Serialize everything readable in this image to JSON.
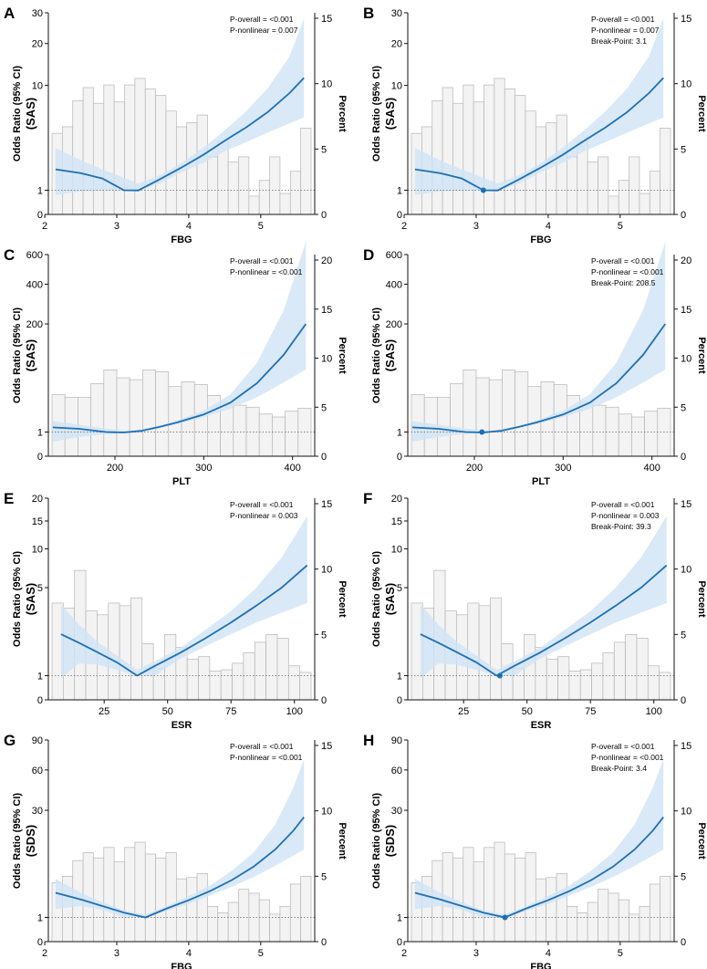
{
  "colors": {
    "curve": "#1f6fb2",
    "band": "#cfe3f5",
    "bar_fill": "#f3f3f3",
    "bar_stroke": "#b5b5b5",
    "axis": "#111111",
    "ref_line": "#666666"
  },
  "chart_data": [
    {
      "type": "bar+line",
      "panel": "A",
      "x_var": "FBG",
      "xlabel": "FBG",
      "ylabel_main": "Odds Ratio (95% CI)",
      "ylabel_sub": "(SAS)",
      "y2label": "Percent",
      "xlim": [
        2.05,
        5.75
      ],
      "xticks": [
        2,
        3,
        4,
        5
      ],
      "yticks": [
        0,
        1,
        10,
        20,
        30
      ],
      "y2ticks": [
        0,
        5,
        10,
        15
      ],
      "stats": [
        "P-overall = <0.001",
        "P-nonlinear = 0.007"
      ],
      "histogram": [
        6.2,
        6.7,
        8.7,
        9.7,
        8.5,
        9.9,
        8.6,
        9.9,
        10.4,
        9.6,
        9.1,
        7.9,
        6.7,
        7.0,
        7.6,
        4.4,
        5.6,
        4.0,
        4.4,
        1.4,
        2.6,
        4.4,
        1.6,
        3.3,
        6.6
      ],
      "curve": {
        "x": [
          2.15,
          2.5,
          2.8,
          3.1,
          3.3,
          3.6,
          3.9,
          4.2,
          4.5,
          4.8,
          5.1,
          5.4,
          5.6
        ],
        "or": [
          1.25,
          1.16,
          1.07,
          1.0,
          0.99,
          1.06,
          1.3,
          1.8,
          2.7,
          3.9,
          5.7,
          8.6,
          11.5
        ]
      },
      "ci_low": [
        0.8,
        0.95,
        0.97,
        0.98,
        0.99,
        1.02,
        1.18,
        1.45,
        2.0,
        2.6,
        3.4,
        4.3,
        5.0
      ],
      "ci_high": [
        2.2,
        1.55,
        1.25,
        1.08,
        1.02,
        1.12,
        1.45,
        2.2,
        3.6,
        5.8,
        9.5,
        16.5,
        28
      ],
      "break_point": null
    },
    {
      "type": "bar+line",
      "panel": "B",
      "x_var": "FBG",
      "xlabel": "FBG",
      "ylabel_main": "Odds Ratio (95% CI)",
      "ylabel_sub": "(SAS)",
      "y2label": "Percent",
      "xlim": [
        2.05,
        5.75
      ],
      "xticks": [
        2,
        3,
        4,
        5
      ],
      "yticks": [
        0,
        1,
        10,
        20,
        30
      ],
      "y2ticks": [
        0,
        5,
        10,
        15
      ],
      "stats": [
        "P-overall = <0.001",
        "P-nonlinear = 0.007",
        "Break-Point: 3.1"
      ],
      "histogram": [
        6.2,
        6.7,
        8.7,
        9.7,
        8.5,
        9.9,
        8.6,
        9.9,
        10.4,
        9.6,
        9.1,
        7.9,
        6.7,
        7.0,
        7.6,
        4.4,
        5.6,
        4.0,
        4.4,
        1.4,
        2.6,
        4.4,
        1.6,
        3.3,
        6.6
      ],
      "curve": {
        "x": [
          2.15,
          2.5,
          2.8,
          3.1,
          3.3,
          3.6,
          3.9,
          4.2,
          4.5,
          4.8,
          5.1,
          5.4,
          5.6
        ],
        "or": [
          1.25,
          1.16,
          1.07,
          1.0,
          0.99,
          1.06,
          1.3,
          1.8,
          2.7,
          3.9,
          5.7,
          8.6,
          11.5
        ]
      },
      "ci_low": [
        0.8,
        0.95,
        0.97,
        0.98,
        0.99,
        1.02,
        1.18,
        1.45,
        2.0,
        2.6,
        3.4,
        4.3,
        5.0
      ],
      "ci_high": [
        2.2,
        1.55,
        1.25,
        1.08,
        1.02,
        1.12,
        1.45,
        2.2,
        3.6,
        5.8,
        9.5,
        16.5,
        28
      ],
      "break_point": 3.1
    },
    {
      "type": "bar+line",
      "panel": "C",
      "x_var": "PLT",
      "xlabel": "PLT",
      "ylabel_main": "Odds Ratio (95% CI)",
      "ylabel_sub": "(SAS)",
      "y2label": "Percent",
      "xlim": [
        125,
        425
      ],
      "xticks": [
        200,
        300,
        400
      ],
      "yticks": [
        0,
        1,
        200,
        400,
        600
      ],
      "y2ticks": [
        0,
        5,
        10,
        15,
        20
      ],
      "stats": [
        "P-overall = <0.001",
        "P-nonlinear = <0.001"
      ],
      "histogram": [
        6.3,
        6.0,
        6.0,
        7.4,
        8.8,
        8.0,
        7.8,
        8.8,
        8.6,
        7.1,
        7.6,
        7.3,
        6.2,
        5.5,
        5.2,
        5.0,
        4.3,
        4.0,
        4.6,
        4.9
      ],
      "curve": {
        "x": [
          130,
          160,
          190,
          210,
          230,
          250,
          270,
          300,
          330,
          360,
          390,
          415
        ],
        "or": [
          1.18,
          1.08,
          1.0,
          0.98,
          1.01,
          1.22,
          1.9,
          4.5,
          12,
          35,
          95,
          200
        ]
      },
      "ci_low": [
        0.6,
        0.8,
        0.92,
        0.96,
        0.98,
        1.12,
        1.6,
        3.4,
        7.5,
        17,
        36,
        60
      ],
      "ci_high": [
        2.2,
        1.5,
        1.1,
        1.01,
        1.05,
        1.35,
        2.4,
        6.4,
        20,
        75,
        260,
        700
      ],
      "break_point": null
    },
    {
      "type": "bar+line",
      "panel": "D",
      "x_var": "PLT",
      "xlabel": "PLT",
      "ylabel_main": "Odds Ratio (95% CI)",
      "ylabel_sub": "(SAS)",
      "y2label": "Percent",
      "xlim": [
        125,
        425
      ],
      "xticks": [
        200,
        300,
        400
      ],
      "yticks": [
        0,
        1,
        200,
        400,
        600
      ],
      "y2ticks": [
        0,
        5,
        10,
        15,
        20
      ],
      "stats": [
        "P-overall = <0.001",
        "P-nonlinear = <0.001",
        "Break-Point: 208.5"
      ],
      "histogram": [
        6.3,
        6.0,
        6.0,
        7.4,
        8.8,
        8.0,
        7.8,
        8.8,
        8.6,
        7.1,
        7.6,
        7.3,
        6.2,
        5.5,
        5.2,
        5.0,
        4.3,
        4.0,
        4.6,
        4.9
      ],
      "curve": {
        "x": [
          130,
          160,
          190,
          210,
          230,
          250,
          270,
          300,
          330,
          360,
          390,
          415
        ],
        "or": [
          1.18,
          1.08,
          1.0,
          0.98,
          1.01,
          1.22,
          1.9,
          4.5,
          12,
          35,
          95,
          200
        ]
      },
      "ci_low": [
        0.6,
        0.8,
        0.92,
        0.96,
        0.98,
        1.12,
        1.6,
        3.4,
        7.5,
        17,
        36,
        60
      ],
      "ci_high": [
        2.2,
        1.5,
        1.1,
        1.01,
        1.05,
        1.35,
        2.4,
        6.4,
        20,
        75,
        260,
        700
      ],
      "break_point": 208.5
    },
    {
      "type": "bar+line",
      "panel": "E",
      "x_var": "ESR",
      "xlabel": "ESR",
      "ylabel_main": "Odds Ratio (95% CI)",
      "ylabel_sub": "(SAS)",
      "y2label": "Percent",
      "xlim": [
        3,
        108
      ],
      "xticks": [
        25,
        50,
        75,
        100
      ],
      "yticks": [
        0,
        1,
        5,
        10,
        15,
        20
      ],
      "y2ticks": [
        0,
        5,
        10,
        15
      ],
      "stats": [
        "P-overall = <0.001",
        "P-nonlinear = 0.003"
      ],
      "histogram": [
        7.4,
        7.0,
        9.9,
        6.8,
        6.5,
        7.4,
        7.2,
        7.8,
        4.3,
        2.4,
        5.0,
        4.0,
        3.1,
        3.3,
        2.2,
        2.3,
        2.8,
        3.6,
        4.4,
        5.0,
        4.7,
        2.6,
        2.1
      ],
      "curve": {
        "x": [
          8,
          15,
          22,
          30,
          38,
          45,
          55,
          65,
          75,
          85,
          95,
          105
        ],
        "or": [
          1.75,
          1.45,
          1.22,
          1.06,
          1.0,
          1.03,
          1.2,
          1.6,
          2.3,
          3.4,
          5.0,
          7.6
        ]
      },
      "ci_low": [
        0.9,
        1.05,
        1.04,
        1.01,
        0.99,
        1.0,
        1.1,
        1.35,
        1.75,
        2.3,
        2.9,
        3.6
      ],
      "ci_high": [
        3.5,
        2.2,
        1.5,
        1.15,
        1.01,
        1.07,
        1.3,
        1.95,
        3.0,
        5.0,
        8.7,
        16
      ],
      "break_point": null
    },
    {
      "type": "bar+line",
      "panel": "F",
      "x_var": "ESR",
      "xlabel": "ESR",
      "ylabel_main": "Odds Ratio (95% CI)",
      "ylabel_sub": "(SAS)",
      "y2label": "Percent",
      "xlim": [
        3,
        108
      ],
      "xticks": [
        25,
        50,
        75,
        100
      ],
      "yticks": [
        0,
        1,
        5,
        10,
        15,
        20
      ],
      "y2ticks": [
        0,
        5,
        10,
        15
      ],
      "stats": [
        "P-overall = <0.001",
        "P-nonlinear = 0.003",
        "Break-Point: 39.3"
      ],
      "histogram": [
        7.4,
        7.0,
        9.9,
        6.8,
        6.5,
        7.4,
        7.2,
        7.8,
        4.3,
        2.4,
        5.0,
        4.0,
        3.1,
        3.3,
        2.2,
        2.3,
        2.8,
        3.6,
        4.4,
        5.0,
        4.7,
        2.6,
        2.1
      ],
      "curve": {
        "x": [
          8,
          15,
          22,
          30,
          38,
          45,
          55,
          65,
          75,
          85,
          95,
          105
        ],
        "or": [
          1.75,
          1.45,
          1.22,
          1.06,
          1.0,
          1.03,
          1.2,
          1.6,
          2.3,
          3.4,
          5.0,
          7.6
        ]
      },
      "ci_low": [
        0.9,
        1.05,
        1.04,
        1.01,
        0.99,
        1.0,
        1.1,
        1.35,
        1.75,
        2.3,
        2.9,
        3.6
      ],
      "ci_high": [
        3.5,
        2.2,
        1.5,
        1.15,
        1.01,
        1.07,
        1.3,
        1.95,
        3.0,
        5.0,
        8.7,
        16
      ],
      "break_point": 39.3
    },
    {
      "type": "bar+line",
      "panel": "G",
      "x_var": "FBG",
      "xlabel": "FBG",
      "ylabel_main": "Odds Ratio (95% CI)",
      "ylabel_sub": "(SDS)",
      "y2label": "Percent",
      "xlim": [
        2.05,
        5.75
      ],
      "xticks": [
        2,
        3,
        4,
        5
      ],
      "yticks": [
        0,
        1,
        30,
        60,
        90
      ],
      "y2ticks": [
        0,
        5,
        10,
        15
      ],
      "stats": [
        "P-overall = <0.001",
        "P-nonlinear = <0.001"
      ],
      "histogram": [
        4.5,
        5.0,
        6.2,
        6.8,
        6.4,
        7.2,
        6.1,
        7.2,
        7.6,
        6.7,
        6.4,
        6.8,
        4.8,
        4.9,
        5.2,
        2.7,
        2.2,
        3.0,
        4.0,
        3.7,
        3.2,
        2.1,
        2.7,
        4.4,
        5.0
      ],
      "curve": {
        "x": [
          2.15,
          2.5,
          2.8,
          3.1,
          3.4,
          3.7,
          4.0,
          4.3,
          4.6,
          4.9,
          5.2,
          5.45,
          5.6
        ],
        "or": [
          2.1,
          1.55,
          1.2,
          1.03,
          1.0,
          1.12,
          1.5,
          2.3,
          3.8,
          6.5,
          11.5,
          19,
          26
        ]
      },
      "ci_low": [
        1.1,
        1.2,
        1.08,
        1.0,
        0.99,
        1.06,
        1.3,
        1.85,
        2.8,
        4.3,
        6.7,
        9.5,
        11.5
      ],
      "ci_high": [
        4.0,
        2.1,
        1.38,
        1.07,
        1.01,
        1.2,
        1.8,
        3.0,
        5.6,
        10.5,
        22,
        45,
        70
      ],
      "break_point": null
    },
    {
      "type": "bar+line",
      "panel": "H",
      "x_var": "FBG",
      "xlabel": "FBG",
      "ylabel_main": "Odds Ratio (95% CI)",
      "ylabel_sub": "(SDS)",
      "y2label": "Percent",
      "xlim": [
        2.05,
        5.75
      ],
      "xticks": [
        2,
        3,
        4,
        5
      ],
      "yticks": [
        0,
        1,
        30,
        60,
        90
      ],
      "y2ticks": [
        0,
        5,
        10,
        15
      ],
      "stats": [
        "P-overall = <0.001",
        "P-nonlinear = <0.001",
        "Break-Point: 3.4"
      ],
      "histogram": [
        4.5,
        5.0,
        6.2,
        6.8,
        6.4,
        7.2,
        6.1,
        7.2,
        7.6,
        6.7,
        6.4,
        6.8,
        4.8,
        4.9,
        5.2,
        2.7,
        2.2,
        3.0,
        4.0,
        3.7,
        3.2,
        2.1,
        2.7,
        4.4,
        5.0
      ],
      "curve": {
        "x": [
          2.15,
          2.5,
          2.8,
          3.1,
          3.4,
          3.7,
          4.0,
          4.3,
          4.6,
          4.9,
          5.2,
          5.45,
          5.6
        ],
        "or": [
          2.1,
          1.55,
          1.2,
          1.03,
          1.0,
          1.12,
          1.5,
          2.3,
          3.8,
          6.5,
          11.5,
          19,
          26
        ]
      },
      "ci_low": [
        1.1,
        1.2,
        1.08,
        1.0,
        0.99,
        1.06,
        1.3,
        1.85,
        2.8,
        4.3,
        6.7,
        9.5,
        11.5
      ],
      "ci_high": [
        4.0,
        2.1,
        1.38,
        1.07,
        1.01,
        1.2,
        1.8,
        3.0,
        5.6,
        10.5,
        22,
        45,
        70
      ],
      "break_point": 3.4
    }
  ]
}
